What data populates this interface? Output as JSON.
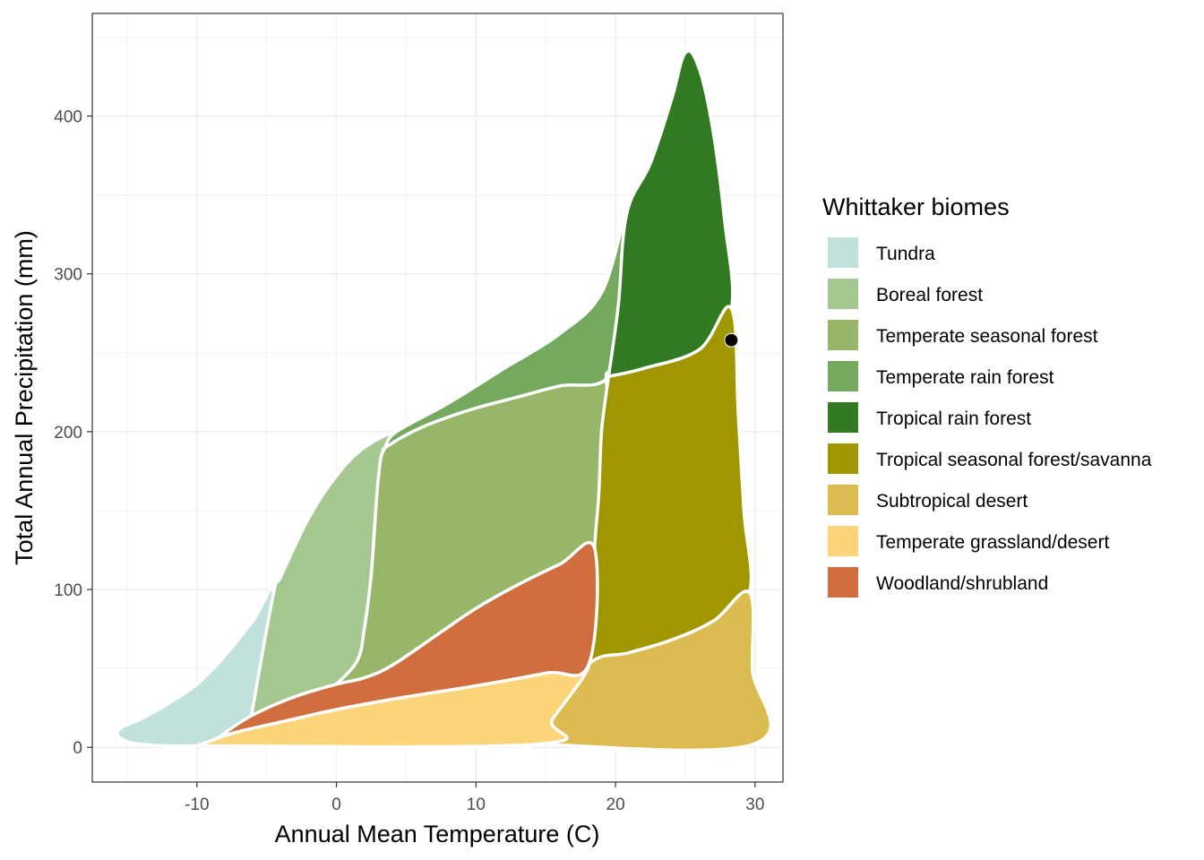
{
  "chart_data": {
    "type": "area",
    "xlabel": "Annual Mean Temperature (C)",
    "ylabel": "Total Annual Precipitation (mm)",
    "xlim": [
      -17.5,
      32
    ],
    "ylim": [
      -22,
      465
    ],
    "x_ticks": [
      -10,
      0,
      10,
      20,
      30
    ],
    "x_tick_labels": [
      "-10",
      "0",
      "10",
      "20",
      "30"
    ],
    "y_ticks": [
      0,
      100,
      200,
      300,
      400
    ],
    "y_tick_labels": [
      "0",
      "100",
      "200",
      "300",
      "400"
    ],
    "grid": true,
    "legend": {
      "title": "Whittaker biomes",
      "placement": "right"
    },
    "series": [
      {
        "name": "Tundra",
        "color": "#C1E1DD",
        "polygon": [
          [
            -15.5,
            12
          ],
          [
            -14,
            18
          ],
          [
            -12,
            28
          ],
          [
            -10,
            40
          ],
          [
            -8,
            58
          ],
          [
            -6,
            80
          ],
          [
            -4.5,
            98
          ],
          [
            -6.1,
            20
          ],
          [
            -8.5,
            6
          ],
          [
            -10,
            1
          ],
          [
            -14,
            2
          ],
          [
            -15.5,
            6
          ]
        ]
      },
      {
        "name": "Boreal forest",
        "color": "#A5C790",
        "polygon": [
          [
            -6.1,
            20
          ],
          [
            -4.5,
            98
          ],
          [
            -4,
            108
          ],
          [
            -2,
            145
          ],
          [
            0,
            172
          ],
          [
            2,
            190
          ],
          [
            4.3,
            200
          ],
          [
            3.5,
            190
          ],
          [
            3,
            170
          ],
          [
            2.5,
            110
          ],
          [
            2,
            75
          ],
          [
            1.5,
            55
          ],
          [
            0,
            40
          ],
          [
            -3,
            32
          ],
          [
            -6.1,
            20
          ]
        ]
      },
      {
        "name": "Temperate seasonal forest",
        "color": "#97B669",
        "polygon": [
          [
            0,
            40
          ],
          [
            1.5,
            55
          ],
          [
            2,
            75
          ],
          [
            2.5,
            110
          ],
          [
            3,
            170
          ],
          [
            3.5,
            190
          ],
          [
            5,
            198
          ],
          [
            7,
            206
          ],
          [
            10,
            215
          ],
          [
            13,
            222
          ],
          [
            16,
            229
          ],
          [
            19.2,
            233
          ],
          [
            19,
            200
          ],
          [
            18.8,
            160
          ],
          [
            18.5,
            126
          ],
          [
            16,
            116
          ],
          [
            13,
            103
          ],
          [
            10,
            88
          ],
          [
            7,
            70
          ],
          [
            4,
            52
          ],
          [
            2,
            44
          ],
          [
            0,
            40
          ]
        ]
      },
      {
        "name": "Temperate rain forest",
        "color": "#75A95E",
        "polygon": [
          [
            3.5,
            190
          ],
          [
            4.3,
            200
          ],
          [
            8,
            218
          ],
          [
            12,
            240
          ],
          [
            16,
            262
          ],
          [
            19,
            288
          ],
          [
            20.8,
            338
          ],
          [
            20.2,
            280
          ],
          [
            19.5,
            235
          ],
          [
            16,
            229
          ],
          [
            13,
            222
          ],
          [
            10,
            215
          ],
          [
            7,
            206
          ],
          [
            5,
            198
          ],
          [
            3.5,
            190
          ]
        ]
      },
      {
        "name": "Tropical rain forest",
        "color": "#317A22",
        "polygon": [
          [
            19.5,
            235
          ],
          [
            20.2,
            280
          ],
          [
            20.8,
            338
          ],
          [
            22.5,
            370
          ],
          [
            24,
            410
          ],
          [
            25,
            440
          ],
          [
            26,
            430
          ],
          [
            27,
            390
          ],
          [
            27.8,
            335
          ],
          [
            28.3,
            278
          ],
          [
            26,
            252
          ],
          [
            22,
            240
          ],
          [
            19.5,
            235
          ]
        ]
      },
      {
        "name": "Tropical seasonal forest/savanna",
        "color": "#A09700",
        "polygon": [
          [
            19.5,
            235
          ],
          [
            22,
            240
          ],
          [
            26,
            252
          ],
          [
            28.3,
            278
          ],
          [
            28.8,
            210
          ],
          [
            29.2,
            150
          ],
          [
            29.6,
            98
          ],
          [
            27,
            80
          ],
          [
            24,
            68
          ],
          [
            21,
            60
          ],
          [
            18.1,
            53
          ],
          [
            18.5,
            126
          ],
          [
            18.8,
            160
          ],
          [
            19,
            200
          ],
          [
            19.5,
            235
          ]
        ]
      },
      {
        "name": "Subtropical desert",
        "color": "#DCBB50",
        "polygon": [
          [
            14.3,
            2
          ],
          [
            15.5,
            18
          ],
          [
            18.1,
            53
          ],
          [
            21,
            60
          ],
          [
            24,
            68
          ],
          [
            27,
            80
          ],
          [
            29.6,
            98
          ],
          [
            29.8,
            50
          ],
          [
            29.9,
            2
          ],
          [
            14.3,
            2
          ]
        ]
      },
      {
        "name": "Temperate grassland/desert",
        "color": "#FCD57A",
        "polygon": [
          [
            -10,
            1
          ],
          [
            -7,
            10
          ],
          [
            -3,
            18
          ],
          [
            0,
            24
          ],
          [
            5,
            32
          ],
          [
            10,
            39
          ],
          [
            15,
            47
          ],
          [
            18.1,
            53
          ],
          [
            15.5,
            18
          ],
          [
            14.3,
            2
          ],
          [
            -10,
            1
          ]
        ]
      },
      {
        "name": "Woodland/shrubland",
        "color": "#D16E3F",
        "polygon": [
          [
            -8.5,
            6
          ],
          [
            -6.1,
            20
          ],
          [
            -3,
            32
          ],
          [
            0,
            40
          ],
          [
            2,
            44
          ],
          [
            4,
            52
          ],
          [
            7,
            70
          ],
          [
            10,
            88
          ],
          [
            13,
            103
          ],
          [
            16,
            116
          ],
          [
            18.5,
            126
          ],
          [
            18.1,
            53
          ],
          [
            15,
            47
          ],
          [
            10,
            39
          ],
          [
            5,
            32
          ],
          [
            0,
            24
          ],
          [
            -3,
            18
          ],
          [
            -7,
            10
          ],
          [
            -8.5,
            6
          ]
        ]
      }
    ],
    "points": [
      {
        "x": 28.3,
        "y": 258,
        "color": "#000000"
      }
    ]
  }
}
